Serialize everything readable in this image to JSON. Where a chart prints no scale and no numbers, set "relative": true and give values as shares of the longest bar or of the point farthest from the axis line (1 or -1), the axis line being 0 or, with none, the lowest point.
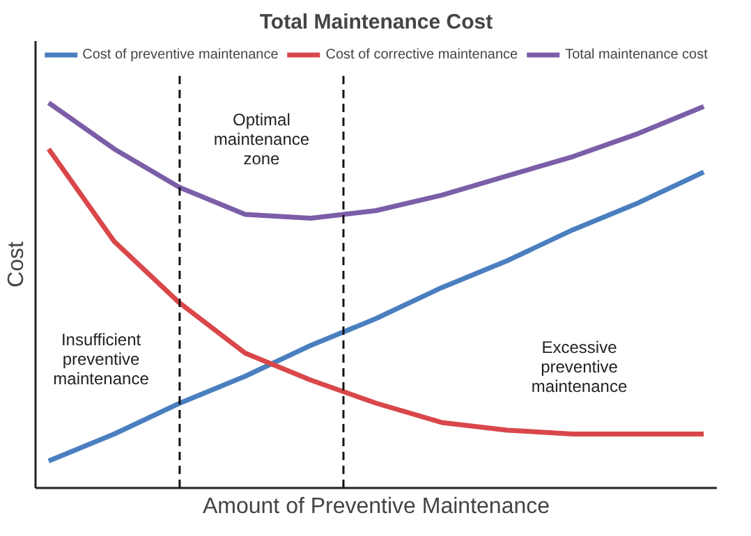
{
  "chart_data": {
    "type": "line",
    "title": "Total Maintenance Cost",
    "xlabel": "Amount of Preventive Maintenance",
    "ylabel": "Cost",
    "relative": true,
    "categories": [
      null,
      null,
      null,
      null,
      null,
      null,
      null,
      null,
      null,
      null,
      null
    ],
    "legend": "top",
    "series": [
      {
        "name": "Cost of preventive maintenance",
        "color": "#4a7fbf",
        "values": [
          0.07,
          0.14,
          0.22,
          0.29,
          0.37,
          0.44,
          0.52,
          0.59,
          0.67,
          0.74,
          0.82
        ]
      },
      {
        "name": "Cost of corrective maintenance",
        "color": "#d9474a",
        "values": [
          0.88,
          0.64,
          0.48,
          0.35,
          0.28,
          0.22,
          0.17,
          0.15,
          0.14,
          0.14,
          0.14
        ]
      },
      {
        "name": "Total maintenance cost",
        "color": "#7b5ea7",
        "values": [
          1.0,
          0.88,
          0.78,
          0.71,
          0.7,
          0.72,
          0.76,
          0.81,
          0.86,
          0.92,
          0.99
        ]
      }
    ],
    "annotations": [
      "Insufficient\npreventive\nmaintenance",
      "Optimal\nmaintenance\nzone",
      "Excessive\npreventive\nmaintenance"
    ]
  }
}
